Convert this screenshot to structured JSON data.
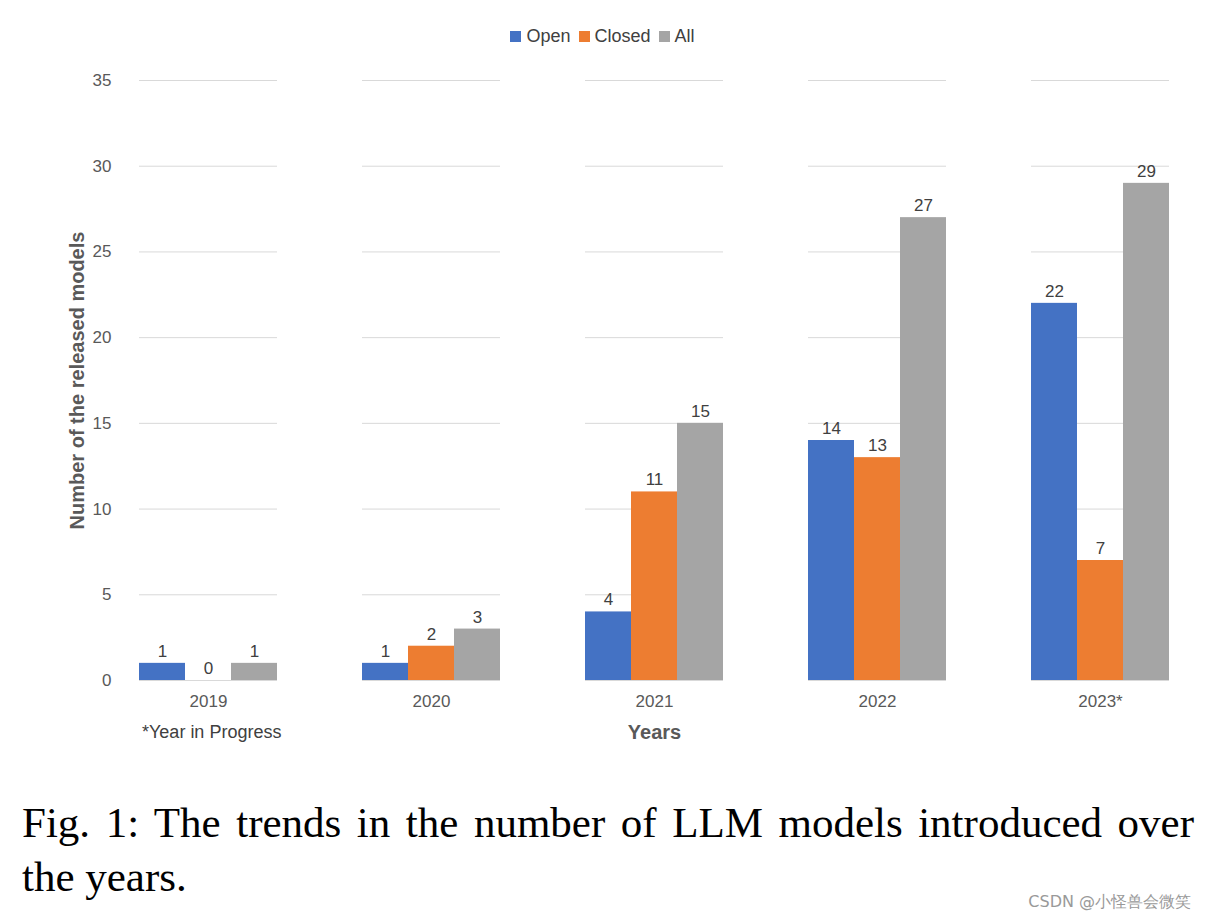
{
  "chart_data": {
    "type": "bar",
    "caption": "Fig. 1: The trends in the number of LLM models introduced over the years.",
    "note": "*Year in Progress",
    "watermark": "CSDN @小怪兽会微笑",
    "x_label": "Years",
    "y_label": "Number of the released models",
    "categories": [
      "2019",
      "2020",
      "2021",
      "2022",
      "2023*"
    ],
    "series": [
      {
        "name": "Open",
        "color": "#4472c4",
        "values": [
          1,
          1,
          4,
          14,
          22
        ]
      },
      {
        "name": "Closed",
        "color": "#ed7d31",
        "values": [
          0,
          2,
          11,
          13,
          7
        ]
      },
      {
        "name": "All",
        "color": "#a5a5a5",
        "values": [
          1,
          3,
          15,
          27,
          29
        ]
      }
    ],
    "ylim": [
      0,
      35
    ],
    "yticks": [
      0,
      5,
      10,
      15,
      20,
      25,
      30,
      35
    ],
    "grid": true,
    "legend": "top",
    "data_labels": true
  }
}
